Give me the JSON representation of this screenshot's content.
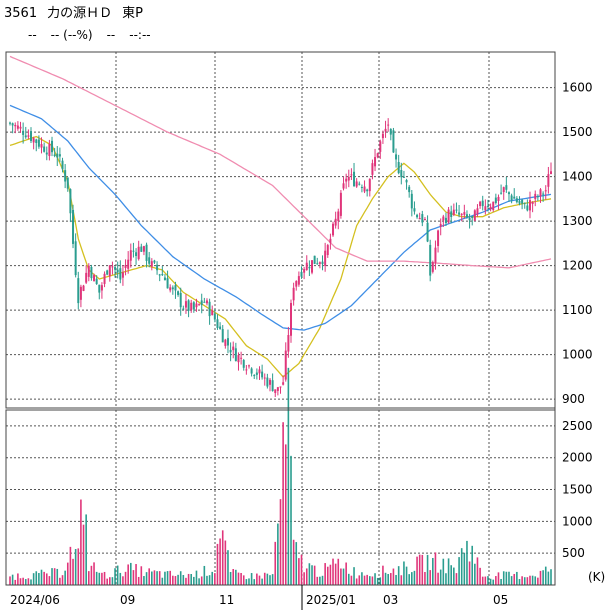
{
  "header": {
    "code": "3561",
    "name": "力の源ＨＤ",
    "market": "東P",
    "price": "--",
    "change": "-- (--%)",
    "volume": "--",
    "time": "--:--"
  },
  "colors": {
    "up": "#e0357a",
    "down": "#2a9d8f",
    "ma_short": "#d4c020",
    "ma_mid": "#3f8ee6",
    "ma_long": "#f08cb0",
    "grid": "#555555",
    "volume_up": "#e0357a",
    "volume_down": "#2a9d8f"
  },
  "chart_data": [
    {
      "type": "candlestick",
      "title": "",
      "ylim": [
        880,
        1680
      ],
      "y_ticks": [
        "1600",
        "1500",
        "1400",
        "1300",
        "1200",
        "1100",
        "1000",
        "900"
      ],
      "x_labels": [
        "2024/06",
        "09",
        "11",
        "2025/01",
        "03",
        "05"
      ],
      "grid": true,
      "close_keypoints": [
        [
          0,
          1520
        ],
        [
          6,
          1500
        ],
        [
          12,
          1470
        ],
        [
          18,
          1450
        ],
        [
          22,
          1380
        ],
        [
          24,
          1250
        ],
        [
          26,
          1130
        ],
        [
          30,
          1200
        ],
        [
          34,
          1140
        ],
        [
          38,
          1210
        ],
        [
          42,
          1170
        ],
        [
          46,
          1230
        ],
        [
          50,
          1240
        ],
        [
          54,
          1200
        ],
        [
          58,
          1180
        ],
        [
          62,
          1140
        ],
        [
          66,
          1110
        ],
        [
          70,
          1100
        ],
        [
          74,
          1120
        ],
        [
          78,
          1080
        ],
        [
          82,
          1030
        ],
        [
          86,
          1000
        ],
        [
          90,
          980
        ],
        [
          94,
          960
        ],
        [
          98,
          940
        ],
        [
          102,
          920
        ],
        [
          104,
          940
        ],
        [
          108,
          1160
        ],
        [
          112,
          1200
        ],
        [
          116,
          1210
        ],
        [
          120,
          1220
        ],
        [
          124,
          1300
        ],
        [
          128,
          1400
        ],
        [
          132,
          1390
        ],
        [
          136,
          1380
        ],
        [
          140,
          1460
        ],
        [
          144,
          1520
        ],
        [
          146,
          1440
        ],
        [
          150,
          1400
        ],
        [
          154,
          1320
        ],
        [
          158,
          1300
        ],
        [
          160,
          1180
        ],
        [
          164,
          1300
        ],
        [
          168,
          1320
        ],
        [
          172,
          1310
        ],
        [
          176,
          1300
        ],
        [
          180,
          1340
        ],
        [
          184,
          1340
        ],
        [
          188,
          1370
        ],
        [
          192,
          1350
        ],
        [
          196,
          1330
        ],
        [
          200,
          1350
        ],
        [
          204,
          1370
        ],
        [
          206,
          1420
        ]
      ],
      "ma_short_keypoints": [
        [
          0,
          1470
        ],
        [
          10,
          1490
        ],
        [
          16,
          1470
        ],
        [
          22,
          1390
        ],
        [
          26,
          1260
        ],
        [
          30,
          1190
        ],
        [
          34,
          1170
        ],
        [
          40,
          1180
        ],
        [
          46,
          1190
        ],
        [
          52,
          1200
        ],
        [
          58,
          1190
        ],
        [
          66,
          1140
        ],
        [
          74,
          1110
        ],
        [
          82,
          1080
        ],
        [
          90,
          1020
        ],
        [
          98,
          990
        ],
        [
          104,
          950
        ],
        [
          110,
          980
        ],
        [
          118,
          1060
        ],
        [
          126,
          1170
        ],
        [
          132,
          1290
        ],
        [
          138,
          1350
        ],
        [
          144,
          1400
        ],
        [
          150,
          1430
        ],
        [
          154,
          1410
        ],
        [
          160,
          1360
        ],
        [
          166,
          1320
        ],
        [
          172,
          1310
        ],
        [
          180,
          1310
        ],
        [
          188,
          1330
        ],
        [
          196,
          1340
        ],
        [
          206,
          1350
        ]
      ],
      "ma_mid_keypoints": [
        [
          0,
          1560
        ],
        [
          12,
          1530
        ],
        [
          22,
          1480
        ],
        [
          30,
          1420
        ],
        [
          40,
          1360
        ],
        [
          50,
          1290
        ],
        [
          62,
          1220
        ],
        [
          74,
          1170
        ],
        [
          86,
          1130
        ],
        [
          96,
          1090
        ],
        [
          104,
          1060
        ],
        [
          112,
          1055
        ],
        [
          120,
          1070
        ],
        [
          130,
          1110
        ],
        [
          140,
          1170
        ],
        [
          150,
          1230
        ],
        [
          160,
          1280
        ],
        [
          170,
          1300
        ],
        [
          180,
          1320
        ],
        [
          190,
          1345
        ],
        [
          206,
          1360
        ]
      ],
      "ma_long_keypoints": [
        [
          0,
          1670
        ],
        [
          20,
          1620
        ],
        [
          40,
          1560
        ],
        [
          60,
          1500
        ],
        [
          80,
          1450
        ],
        [
          100,
          1380
        ],
        [
          112,
          1310
        ],
        [
          124,
          1240
        ],
        [
          136,
          1210
        ],
        [
          150,
          1210
        ],
        [
          164,
          1205
        ],
        [
          176,
          1200
        ],
        [
          190,
          1195
        ],
        [
          206,
          1215
        ]
      ]
    },
    {
      "type": "bar",
      "title": "",
      "ylim": [
        0,
        2750
      ],
      "y_ticks": [
        "2500",
        "2000",
        "1500",
        "1000",
        "500"
      ],
      "unit_label": "(K)",
      "grid": true,
      "volume_keypoints": [
        [
          0,
          140
        ],
        [
          10,
          160
        ],
        [
          20,
          200
        ],
        [
          22,
          500
        ],
        [
          26,
          450
        ],
        [
          28,
          1500
        ],
        [
          30,
          320
        ],
        [
          36,
          150
        ],
        [
          44,
          260
        ],
        [
          52,
          200
        ],
        [
          60,
          160
        ],
        [
          70,
          160
        ],
        [
          78,
          260
        ],
        [
          80,
          1000
        ],
        [
          84,
          180
        ],
        [
          92,
          140
        ],
        [
          100,
          160
        ],
        [
          104,
          1800
        ],
        [
          106,
          2700
        ],
        [
          108,
          560
        ],
        [
          112,
          320
        ],
        [
          118,
          200
        ],
        [
          126,
          360
        ],
        [
          132,
          180
        ],
        [
          140,
          200
        ],
        [
          150,
          260
        ],
        [
          160,
          380
        ],
        [
          166,
          320
        ],
        [
          170,
          260
        ],
        [
          174,
          700
        ],
        [
          180,
          150
        ],
        [
          190,
          150
        ],
        [
          200,
          160
        ],
        [
          206,
          260
        ]
      ]
    }
  ]
}
